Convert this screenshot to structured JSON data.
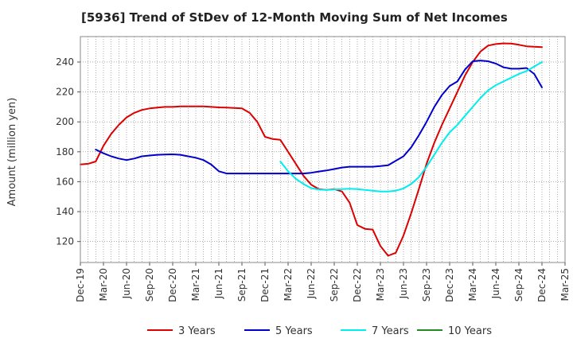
{
  "chart_data": {
    "type": "line",
    "title": "[5936]  Trend of StDev of 12-Month Moving Sum of Net Incomes",
    "ylabel": "Amount (million yen)",
    "xlabel": "",
    "ylim": [
      106,
      257
    ],
    "yticks": [
      120,
      140,
      160,
      180,
      200,
      220,
      240
    ],
    "xlim": [
      "Dec-19",
      "Mar-25"
    ],
    "xtick_labels": [
      "Dec-19",
      "Mar-20",
      "Jun-20",
      "Sep-20",
      "Dec-20",
      "Mar-21",
      "Jun-21",
      "Sep-21",
      "Dec-21",
      "Mar-22",
      "Jun-22",
      "Sep-22",
      "Dec-22",
      "Mar-23",
      "Jun-23",
      "Sep-23",
      "Dec-23",
      "Mar-24",
      "Jun-24",
      "Sep-24",
      "Dec-24",
      "Mar-25"
    ],
    "grid": true,
    "legend_position": "bottom",
    "series": [
      {
        "name": "3 Years",
        "color": "#dd0000",
        "x": [
          "Dec-19",
          "Jan-20",
          "Feb-20",
          "Mar-20",
          "Apr-20",
          "May-20",
          "Jun-20",
          "Jul-20",
          "Aug-20",
          "Sep-20",
          "Oct-20",
          "Nov-20",
          "Dec-20",
          "Jan-21",
          "Feb-21",
          "Mar-21",
          "Apr-21",
          "May-21",
          "Jun-21",
          "Jul-21",
          "Aug-21",
          "Sep-21",
          "Oct-21",
          "Nov-21",
          "Dec-21",
          "Jan-22",
          "Feb-22",
          "Mar-22",
          "Apr-22",
          "May-22",
          "Jun-22",
          "Jul-22",
          "Aug-22",
          "Sep-22",
          "Oct-22",
          "Nov-22",
          "Dec-22",
          "Jan-23",
          "Feb-23",
          "Mar-23",
          "Apr-23",
          "May-23",
          "Jun-23",
          "Jul-23",
          "Aug-23",
          "Sep-23",
          "Oct-23",
          "Nov-23",
          "Dec-23",
          "Jan-24",
          "Feb-24",
          "Mar-24",
          "Apr-24",
          "May-24",
          "Jun-24",
          "Jul-24",
          "Aug-24",
          "Sep-24",
          "Oct-24",
          "Nov-24",
          "Dec-24"
        ],
        "values": [
          171.5,
          172,
          173.5,
          184,
          192,
          198,
          203,
          206,
          208,
          209,
          209.5,
          210,
          210,
          210.3,
          210.3,
          210.3,
          210.3,
          210,
          209.7,
          209.5,
          209.3,
          209,
          206,
          200,
          190,
          188.5,
          188,
          180,
          172,
          164,
          158,
          155,
          154.5,
          155,
          153.5,
          146,
          131,
          128.5,
          128,
          117,
          110.5,
          112.5,
          124,
          139,
          155,
          172,
          186,
          198,
          209,
          220,
          231,
          240,
          247,
          251,
          252,
          252.5,
          252.3,
          251.5,
          250.5,
          250.2,
          250
        ]
      },
      {
        "name": "5 Years",
        "color": "#0000cc",
        "x": [
          "Feb-20",
          "Mar-20",
          "Apr-20",
          "May-20",
          "Jun-20",
          "Jul-20",
          "Aug-20",
          "Sep-20",
          "Oct-20",
          "Nov-20",
          "Dec-20",
          "Jan-21",
          "Feb-21",
          "Mar-21",
          "Apr-21",
          "May-21",
          "Jun-21",
          "Jul-21",
          "Aug-21",
          "Sep-21",
          "Oct-21",
          "Nov-21",
          "Dec-21",
          "Jan-22",
          "Feb-22",
          "Mar-22",
          "Apr-22",
          "May-22",
          "Jun-22",
          "Jul-22",
          "Aug-22",
          "Sep-22",
          "Oct-22",
          "Nov-22",
          "Dec-22",
          "Jan-23",
          "Feb-23",
          "Mar-23",
          "Apr-23",
          "May-23",
          "Jun-23",
          "Jul-23",
          "Aug-23",
          "Sep-23",
          "Oct-23",
          "Nov-23",
          "Dec-23",
          "Jan-24",
          "Feb-24",
          "Mar-24",
          "Apr-24",
          "May-24",
          "Jun-24",
          "Jul-24",
          "Aug-24",
          "Sep-24",
          "Oct-24",
          "Nov-24",
          "Dec-24"
        ],
        "values": [
          181.5,
          179,
          177,
          175.5,
          174.5,
          175.5,
          177,
          177.5,
          178,
          178.2,
          178.3,
          178,
          177,
          176,
          174.5,
          171.5,
          167,
          165.5,
          165.5,
          165.5,
          165.5,
          165.5,
          165.5,
          165.5,
          165.5,
          165.5,
          165.5,
          165.5,
          166,
          166.8,
          167.5,
          168.5,
          169.5,
          170,
          170,
          170,
          170,
          170.5,
          171,
          174,
          177,
          183,
          191,
          200,
          210,
          218,
          224,
          227,
          235,
          240.5,
          241,
          240.5,
          239,
          236.5,
          235.5,
          235.5,
          236,
          232,
          223
        ]
      },
      {
        "name": "7 Years",
        "color": "#00eeee",
        "x": [
          "Feb-22",
          "Mar-22",
          "Apr-22",
          "May-22",
          "Jun-22",
          "Jul-22",
          "Aug-22",
          "Sep-22",
          "Oct-22",
          "Nov-22",
          "Dec-22",
          "Jan-23",
          "Feb-23",
          "Mar-23",
          "Apr-23",
          "May-23",
          "Jun-23",
          "Jul-23",
          "Aug-23",
          "Sep-23",
          "Oct-23",
          "Nov-23",
          "Dec-23",
          "Jan-24",
          "Feb-24",
          "Mar-24",
          "Apr-24",
          "May-24",
          "Jun-24",
          "Jul-24",
          "Aug-24",
          "Sep-24",
          "Oct-24",
          "Nov-24",
          "Dec-24"
        ],
        "values": [
          173.5,
          167,
          162,
          158.5,
          155.7,
          154.7,
          154.5,
          154.8,
          155,
          155.3,
          155,
          154.5,
          154,
          153.5,
          153.5,
          154,
          155.5,
          158.5,
          163,
          170,
          178,
          186,
          193,
          198,
          204,
          210,
          216,
          221,
          224.5,
          227,
          229.5,
          232,
          234,
          237,
          240
        ]
      },
      {
        "name": "10 Years",
        "color": "#228b22",
        "x": [],
        "values": []
      }
    ]
  }
}
